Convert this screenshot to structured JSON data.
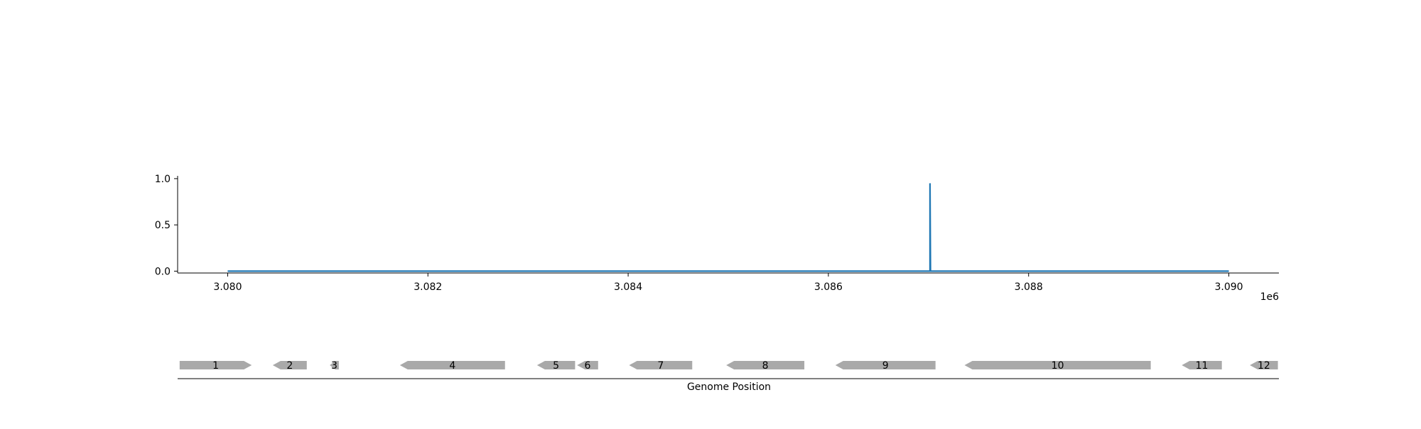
{
  "chart_data": {
    "type": "line",
    "title": "",
    "xlabel": "",
    "ylabel": "",
    "x_offset_label": "1e6",
    "x_tick_labels": [
      "3.080",
      "3.082",
      "3.084",
      "3.086",
      "3.088",
      "3.090"
    ],
    "x_tick_values": [
      3080000,
      3082000,
      3084000,
      3086000,
      3088000,
      3090000
    ],
    "y_tick_labels": [
      "0.0",
      "0.5",
      "1.0"
    ],
    "y_tick_values": [
      0.0,
      0.5,
      1.0
    ],
    "xlim": [
      3079500,
      3090500
    ],
    "ylim": [
      -0.02,
      1.03
    ],
    "grid": false,
    "line_color": "#1f77b4",
    "series": [
      {
        "x": [
          3080000,
          3087015,
          3087015,
          3087015,
          3087020,
          3090000
        ],
        "y": [
          0,
          0,
          0,
          0.95,
          0,
          0
        ]
      }
    ],
    "gene_track": {
      "xlabel": "Genome Position",
      "feature_color": "#a9a9a9",
      "genes": [
        {
          "label": "1",
          "start": 3079520,
          "end": 3080240,
          "strand": 1
        },
        {
          "label": "2",
          "start": 3080450,
          "end": 3080790,
          "strand": -1
        },
        {
          "label": "3",
          "start": 3081020,
          "end": 3081110,
          "strand": -1
        },
        {
          "label": "4",
          "start": 3081720,
          "end": 3082770,
          "strand": -1
        },
        {
          "label": "5",
          "start": 3083090,
          "end": 3083470,
          "strand": -1
        },
        {
          "label": "6",
          "start": 3083490,
          "end": 3083700,
          "strand": -1
        },
        {
          "label": "7",
          "start": 3084010,
          "end": 3084640,
          "strand": -1
        },
        {
          "label": "8",
          "start": 3084980,
          "end": 3085760,
          "strand": -1
        },
        {
          "label": "9",
          "start": 3086070,
          "end": 3087070,
          "strand": -1
        },
        {
          "label": "10",
          "start": 3087360,
          "end": 3089220,
          "strand": -1
        },
        {
          "label": "11",
          "start": 3089530,
          "end": 3089930,
          "strand": -1
        },
        {
          "label": "12",
          "start": 3090210,
          "end": 3090490,
          "strand": -1
        }
      ]
    }
  }
}
